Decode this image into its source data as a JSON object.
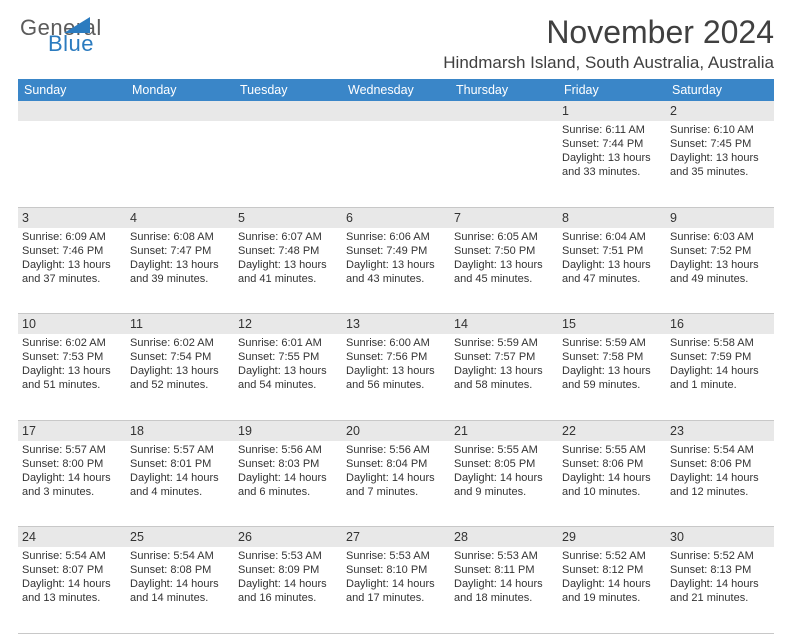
{
  "brand": {
    "part1": "General",
    "part2": "Blue"
  },
  "title": "November 2024",
  "location": "Hindmarsh Island, South Australia, Australia",
  "colors": {
    "header_bg": "#3a86c8",
    "header_fg": "#ffffff",
    "band_bg": "#e8e8e8",
    "text": "#333333",
    "border": "#c8c8c8"
  },
  "day_headers": [
    "Sunday",
    "Monday",
    "Tuesday",
    "Wednesday",
    "Thursday",
    "Friday",
    "Saturday"
  ],
  "weeks": [
    [
      null,
      null,
      null,
      null,
      null,
      {
        "n": "1",
        "sr": "6:11 AM",
        "ss": "7:44 PM",
        "dl": "13 hours and 33 minutes."
      },
      {
        "n": "2",
        "sr": "6:10 AM",
        "ss": "7:45 PM",
        "dl": "13 hours and 35 minutes."
      }
    ],
    [
      {
        "n": "3",
        "sr": "6:09 AM",
        "ss": "7:46 PM",
        "dl": "13 hours and 37 minutes."
      },
      {
        "n": "4",
        "sr": "6:08 AM",
        "ss": "7:47 PM",
        "dl": "13 hours and 39 minutes."
      },
      {
        "n": "5",
        "sr": "6:07 AM",
        "ss": "7:48 PM",
        "dl": "13 hours and 41 minutes."
      },
      {
        "n": "6",
        "sr": "6:06 AM",
        "ss": "7:49 PM",
        "dl": "13 hours and 43 minutes."
      },
      {
        "n": "7",
        "sr": "6:05 AM",
        "ss": "7:50 PM",
        "dl": "13 hours and 45 minutes."
      },
      {
        "n": "8",
        "sr": "6:04 AM",
        "ss": "7:51 PM",
        "dl": "13 hours and 47 minutes."
      },
      {
        "n": "9",
        "sr": "6:03 AM",
        "ss": "7:52 PM",
        "dl": "13 hours and 49 minutes."
      }
    ],
    [
      {
        "n": "10",
        "sr": "6:02 AM",
        "ss": "7:53 PM",
        "dl": "13 hours and 51 minutes."
      },
      {
        "n": "11",
        "sr": "6:02 AM",
        "ss": "7:54 PM",
        "dl": "13 hours and 52 minutes."
      },
      {
        "n": "12",
        "sr": "6:01 AM",
        "ss": "7:55 PM",
        "dl": "13 hours and 54 minutes."
      },
      {
        "n": "13",
        "sr": "6:00 AM",
        "ss": "7:56 PM",
        "dl": "13 hours and 56 minutes."
      },
      {
        "n": "14",
        "sr": "5:59 AM",
        "ss": "7:57 PM",
        "dl": "13 hours and 58 minutes."
      },
      {
        "n": "15",
        "sr": "5:59 AM",
        "ss": "7:58 PM",
        "dl": "13 hours and 59 minutes."
      },
      {
        "n": "16",
        "sr": "5:58 AM",
        "ss": "7:59 PM",
        "dl": "14 hours and 1 minute."
      }
    ],
    [
      {
        "n": "17",
        "sr": "5:57 AM",
        "ss": "8:00 PM",
        "dl": "14 hours and 3 minutes."
      },
      {
        "n": "18",
        "sr": "5:57 AM",
        "ss": "8:01 PM",
        "dl": "14 hours and 4 minutes."
      },
      {
        "n": "19",
        "sr": "5:56 AM",
        "ss": "8:03 PM",
        "dl": "14 hours and 6 minutes."
      },
      {
        "n": "20",
        "sr": "5:56 AM",
        "ss": "8:04 PM",
        "dl": "14 hours and 7 minutes."
      },
      {
        "n": "21",
        "sr": "5:55 AM",
        "ss": "8:05 PM",
        "dl": "14 hours and 9 minutes."
      },
      {
        "n": "22",
        "sr": "5:55 AM",
        "ss": "8:06 PM",
        "dl": "14 hours and 10 minutes."
      },
      {
        "n": "23",
        "sr": "5:54 AM",
        "ss": "8:06 PM",
        "dl": "14 hours and 12 minutes."
      }
    ],
    [
      {
        "n": "24",
        "sr": "5:54 AM",
        "ss": "8:07 PM",
        "dl": "14 hours and 13 minutes."
      },
      {
        "n": "25",
        "sr": "5:54 AM",
        "ss": "8:08 PM",
        "dl": "14 hours and 14 minutes."
      },
      {
        "n": "26",
        "sr": "5:53 AM",
        "ss": "8:09 PM",
        "dl": "14 hours and 16 minutes."
      },
      {
        "n": "27",
        "sr": "5:53 AM",
        "ss": "8:10 PM",
        "dl": "14 hours and 17 minutes."
      },
      {
        "n": "28",
        "sr": "5:53 AM",
        "ss": "8:11 PM",
        "dl": "14 hours and 18 minutes."
      },
      {
        "n": "29",
        "sr": "5:52 AM",
        "ss": "8:12 PM",
        "dl": "14 hours and 19 minutes."
      },
      {
        "n": "30",
        "sr": "5:52 AM",
        "ss": "8:13 PM",
        "dl": "14 hours and 21 minutes."
      }
    ]
  ],
  "labels": {
    "sunrise": "Sunrise:",
    "sunset": "Sunset:",
    "daylight": "Daylight:"
  }
}
